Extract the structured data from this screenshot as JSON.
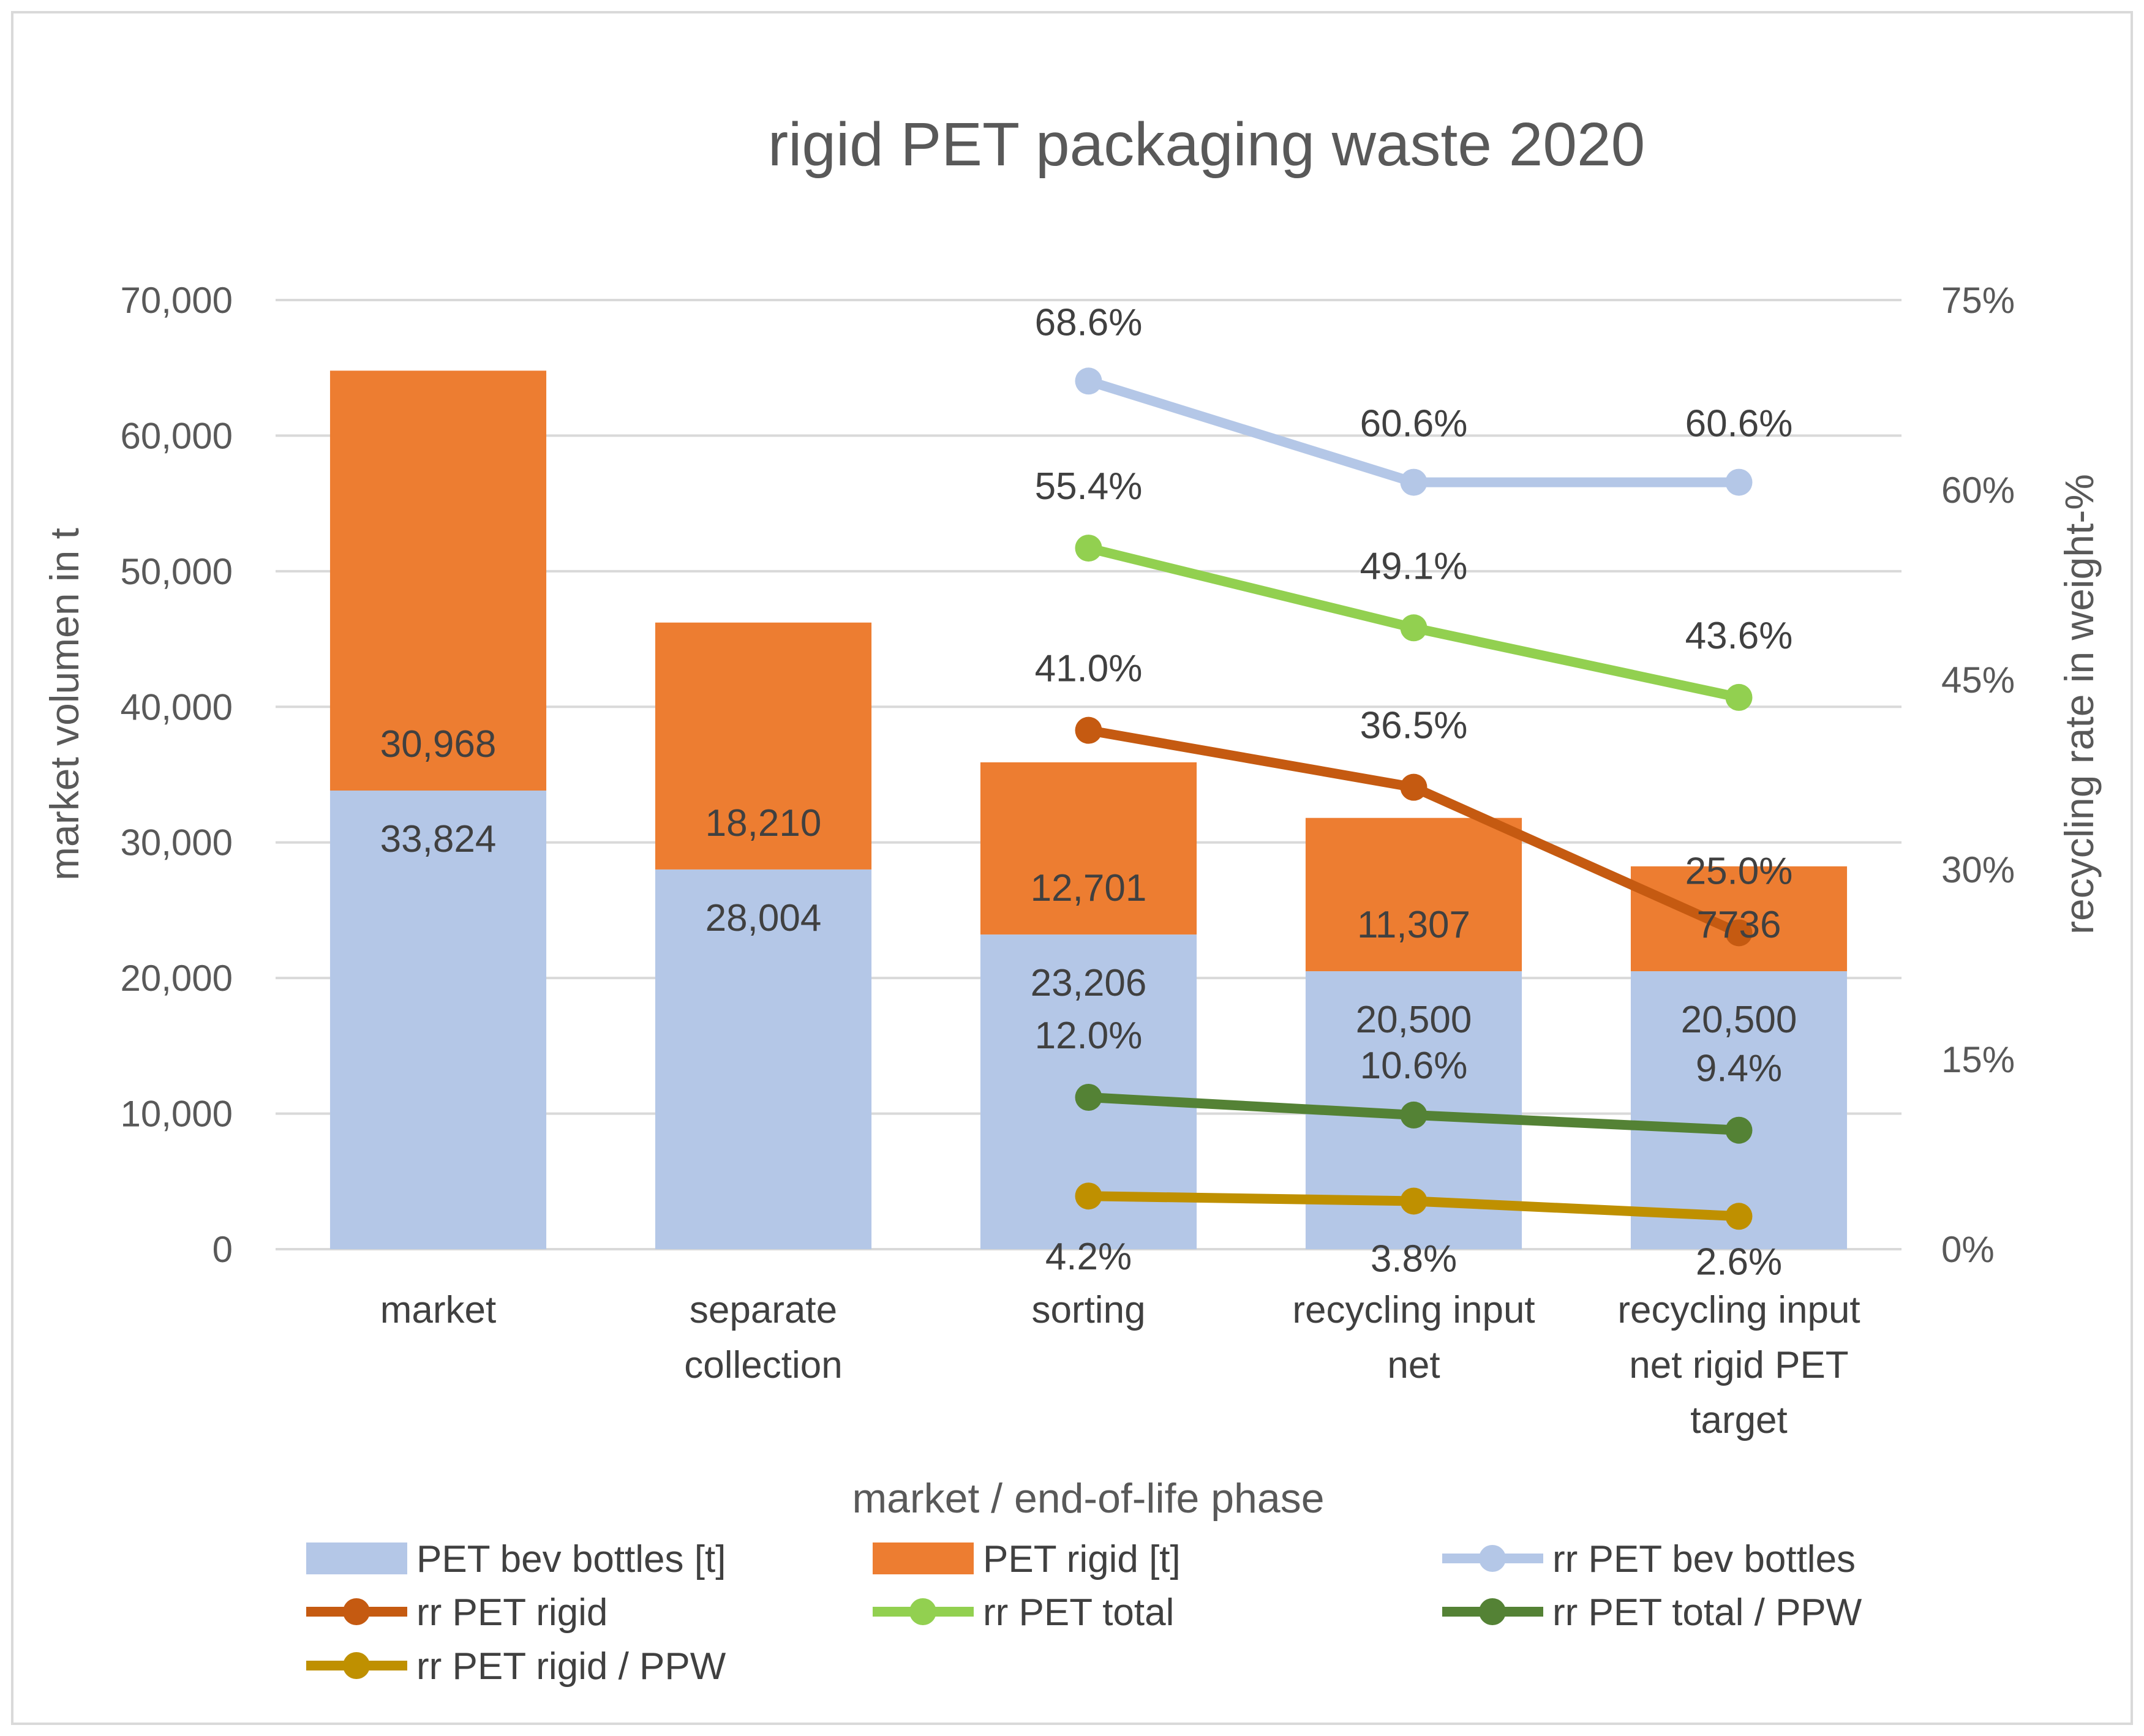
{
  "chart_data": {
    "type": "bar",
    "title": "rigid PET packaging waste 2020",
    "xlabel": "market / end-of-life phase",
    "ylabel": "market volumen in t",
    "y2label": "recycling rate in weight-%",
    "ylim": [
      0,
      70000
    ],
    "y2lim": [
      0,
      75
    ],
    "yticks": [
      "0",
      "10,000",
      "20,000",
      "30,000",
      "40,000",
      "50,000",
      "60,000",
      "70,000"
    ],
    "y2ticks": [
      "0%",
      "15%",
      "30%",
      "45%",
      "60%",
      "75%"
    ],
    "grid": true,
    "legend_position": "bottom",
    "categories": [
      [
        "market"
      ],
      [
        "separate",
        "collection"
      ],
      [
        "sorting"
      ],
      [
        "recycling input",
        "net"
      ],
      [
        "recycling input",
        "net rigid PET",
        "target"
      ]
    ],
    "bar_series": [
      {
        "name": "PET bev bottles [t]",
        "color": "#b4c7e7",
        "values": [
          33824,
          28004,
          23206,
          20500,
          20500
        ],
        "labels": [
          "33,824",
          "28,004",
          "23,206",
          "20,500",
          "20,500"
        ]
      },
      {
        "name": "PET rigid [t]",
        "color": "#ed7d31",
        "values": [
          30968,
          18210,
          12701,
          11307,
          7736
        ],
        "labels": [
          "30,968",
          "18,210",
          "12,701",
          "11,307",
          "7736"
        ]
      }
    ],
    "line_series": [
      {
        "name": "rr PET bev bottles",
        "color": "#b4c7e7",
        "values": [
          null,
          null,
          68.6,
          60.6,
          60.6
        ],
        "labels": [
          "",
          "",
          "68.6%",
          "60.6%",
          "60.6%"
        ]
      },
      {
        "name": "rr PET rigid",
        "color": "#c55a11",
        "values": [
          null,
          null,
          41.0,
          36.5,
          25.0
        ],
        "labels": [
          "",
          "",
          "41.0%",
          "36.5%",
          "25.0%"
        ]
      },
      {
        "name": "rr PET total",
        "color": "#92d050",
        "values": [
          null,
          null,
          55.4,
          49.1,
          43.6
        ],
        "labels": [
          "",
          "",
          "55.4%",
          "49.1%",
          "43.6%"
        ]
      },
      {
        "name": "rr PET total / PPW",
        "color": "#548235",
        "values": [
          null,
          null,
          12.0,
          10.6,
          9.4
        ],
        "labels": [
          "",
          "",
          "12.0%",
          "10.6%",
          "9.4%"
        ]
      },
      {
        "name": "rr PET rigid / PPW",
        "color": "#bf9000",
        "values": [
          null,
          null,
          4.2,
          3.8,
          2.6
        ],
        "labels": [
          "",
          "",
          "4.2%",
          "3.8%",
          "2.6%"
        ]
      }
    ]
  }
}
